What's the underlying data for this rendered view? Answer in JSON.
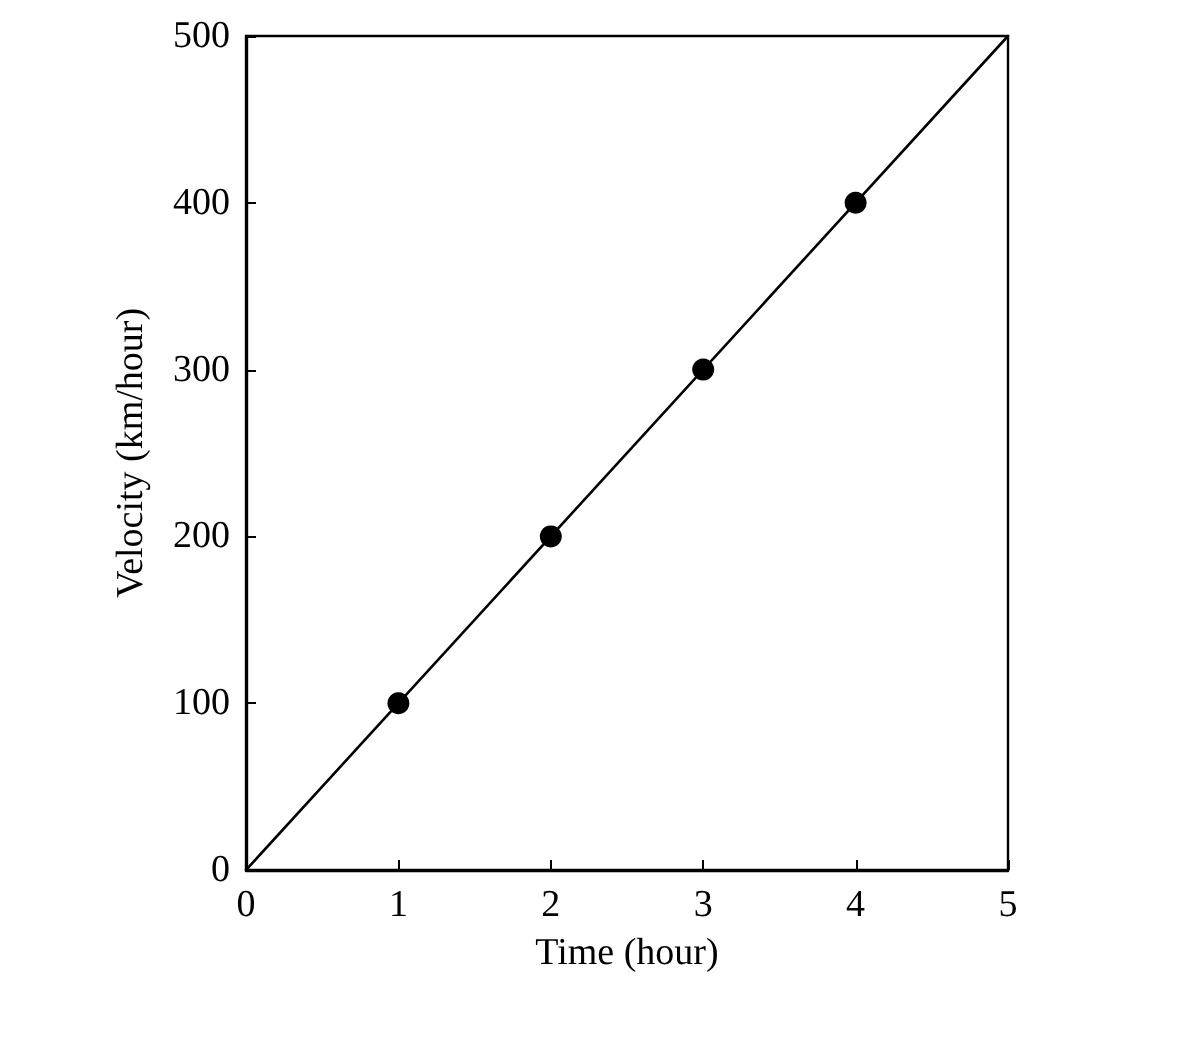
{
  "chart_data": {
    "type": "line",
    "xlabel": "Time (hour)",
    "ylabel": "Velocity (km/hour)",
    "xlim": [
      0,
      5
    ],
    "ylim": [
      0,
      500
    ],
    "xticks": [
      0,
      1,
      2,
      3,
      4,
      5
    ],
    "yticks": [
      0,
      100,
      200,
      300,
      400,
      500
    ],
    "series": [
      {
        "type": "line",
        "color": "#000000",
        "x": [
          0,
          5
        ],
        "values": [
          0,
          500
        ],
        "marker": "none",
        "line_style": "solid"
      },
      {
        "type": "scatter",
        "color": "#000000",
        "x": [
          1,
          2,
          3,
          4
        ],
        "values": [
          100,
          200,
          300,
          400
        ],
        "marker": "circle"
      }
    ]
  }
}
